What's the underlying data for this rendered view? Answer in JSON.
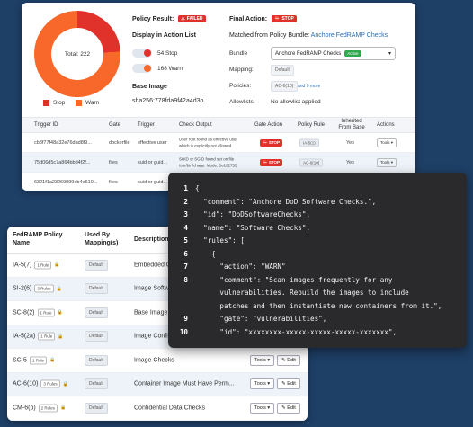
{
  "top": {
    "donut": {
      "total_label": "Total: 222",
      "stop_fraction": 0.243
    },
    "legend": [
      {
        "label": "Stop",
        "color": "#e0312a"
      },
      {
        "label": "Warn",
        "color": "#f7682a"
      }
    ],
    "policy_result_label": "Policy Result:",
    "policy_result_badge": "FAILED",
    "final_action_label": "Final Action:",
    "final_action_badge": "STOP",
    "display_in_action_list": "Display in Action List",
    "toggles": [
      {
        "label": "54 Stop",
        "color": "#e0312a"
      },
      {
        "label": "168 Warn",
        "color": "#f7682a"
      }
    ],
    "base_image_label": "Base Image",
    "base_image_value": "sha256:778fda9f42a4d3o...",
    "matched_label": "Matched from Policy Bundle:",
    "matched_value": "Anchore FedRAMP Checks",
    "bundle_label": "Bundle",
    "bundle_value": "Anchore FedRAMP Checks",
    "bundle_badge": "Active",
    "mapping_label": "Mapping:",
    "mapping_value": "Default",
    "policies_label": "Policies:",
    "policies_value": "AC-6(10)",
    "policies_more": "and 9 more",
    "allowlists_label": "Allowlists:",
    "allowlists_value": "No allowlist applied",
    "table": {
      "headers": [
        "Trigger ID",
        "Gate",
        "Trigger",
        "Check Output",
        "Gate Action",
        "Policy Rule",
        "Inherited From Base",
        "Actions"
      ],
      "rows": [
        {
          "id": "cb8f77f48a32e76dad8f9...",
          "gate": "dockerfile",
          "trigger": "effective user",
          "output1": "User root found as effective user",
          "output2": "which is explicitly not allowed",
          "action": "STOP",
          "rule": "IA-5(1)",
          "inherited": "Yes",
          "tools": "Tools"
        },
        {
          "id": "75d06d5c7a864bbd4f2f...",
          "gate": "files",
          "trigger": "suid or guid...",
          "output1": "SUID or SGID found set on file",
          "output2": "/usr/bin/chage. Mode: 0o102755",
          "action": "STOP",
          "rule": "AC-6(10)",
          "inherited": "Yes",
          "tools": "Tools"
        },
        {
          "id": "6321f1a23260099eb4e610...",
          "gate": "files",
          "trigger": "suid or guid...",
          "output1": "",
          "output2": "",
          "action": "",
          "rule": "",
          "inherited": "",
          "tools": ""
        }
      ]
    }
  },
  "bottom": {
    "headers": {
      "policy_name": "FedRAMP Policy Name",
      "used_by": "Used By Mapping(s)",
      "description": "Description"
    },
    "rows": [
      {
        "name": "IA-5(7)",
        "rules": "1 Rule",
        "mapping": "Default",
        "description": "Embedded C..."
      },
      {
        "name": "SI-2(6)",
        "rules": "3 Rules",
        "mapping": "Default",
        "description": "Image Softw..."
      },
      {
        "name": "SC-8(2)",
        "rules": "1 Rule",
        "mapping": "Default",
        "description": "Base Image..."
      },
      {
        "name": "IA-5(2a)",
        "rules": "1 Rule",
        "mapping": "Default",
        "description": "Image Confi..."
      },
      {
        "name": "SC-5",
        "rules": "1 Rule",
        "mapping": "Default",
        "description": "Image Checks"
      },
      {
        "name": "AC-6(10)",
        "rules": "3 Rules",
        "mapping": "Default",
        "description": "Container Image Must Have Perm..."
      },
      {
        "name": "CM-6(b)",
        "rules": "2 Rules",
        "mapping": "Default",
        "description": "Confidential Data Checks"
      }
    ],
    "tools_label": "Tools",
    "edit_label": "Edit"
  },
  "code": {
    "lines": [
      {
        "n": "1",
        "text": "{"
      },
      {
        "n": "2",
        "text": "  \"comment\": \"Anchore DoD Software Checks.\","
      },
      {
        "n": "3",
        "text": "  \"id\": \"DoDSoftwareChecks\","
      },
      {
        "n": "4",
        "text": "  \"name\": \"Software Checks\","
      },
      {
        "n": "5",
        "text": "  \"rules\": ["
      },
      {
        "n": "6",
        "text": "    {"
      },
      {
        "n": "7",
        "text": "      \"action\": \"WARN\""
      },
      {
        "n": "8",
        "text": "      \"comment\": \"Scan images frequently for any"
      },
      {
        "n": "",
        "text": "      vulnerabilities. Rebuild the images to include"
      },
      {
        "n": "",
        "text": "      patches and then instantiate new containers from it.\","
      },
      {
        "n": "9",
        "text": "      \"gate\": \"vulnerabilities\","
      },
      {
        "n": "10",
        "text": "      \"id\": \"xxxxxxxx-xxxxx-xxxxx-xxxxx-xxxxxxx\","
      }
    ]
  }
}
